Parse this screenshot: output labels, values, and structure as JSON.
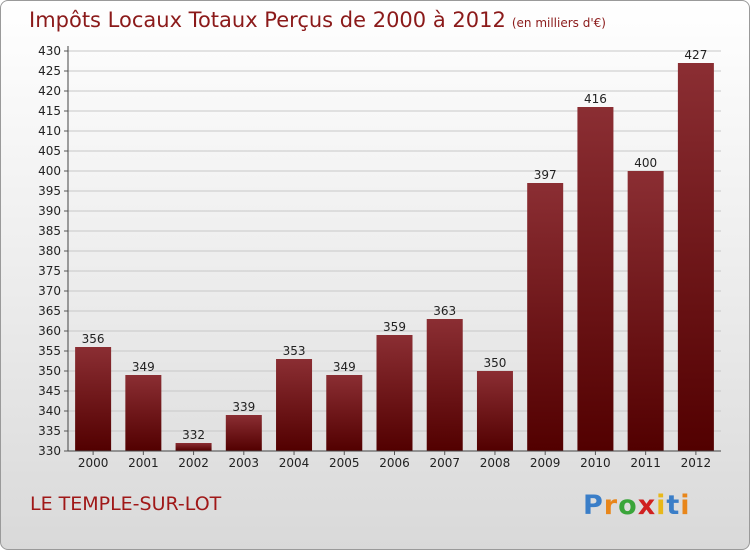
{
  "title": "Impôts Locaux Totaux Perçus de 2000 à 2012",
  "subtitle": "(en milliers d'€)",
  "commune": "LE TEMPLE-SUR-LOT",
  "logo": {
    "letters": [
      "P",
      "r",
      "o",
      "x",
      "i",
      "t",
      "i"
    ],
    "colors": [
      "#3a7ec8",
      "#e8861a",
      "#3aa53a",
      "#d02020",
      "#e8b81a",
      "#3a7ec8",
      "#e8861a"
    ]
  },
  "colors": {
    "bar_top": "#8b2e33",
    "bar_bottom": "#520000",
    "title": "#8b1a1a"
  },
  "chart_data": {
    "type": "bar",
    "categories": [
      "2000",
      "2001",
      "2002",
      "2003",
      "2004",
      "2005",
      "2006",
      "2007",
      "2008",
      "2009",
      "2010",
      "2011",
      "2012"
    ],
    "values": [
      356,
      349,
      332,
      339,
      353,
      349,
      359,
      363,
      350,
      397,
      416,
      400,
      427
    ],
    "ylim": [
      330,
      430
    ],
    "ytick_step": 5,
    "grid": true
  }
}
